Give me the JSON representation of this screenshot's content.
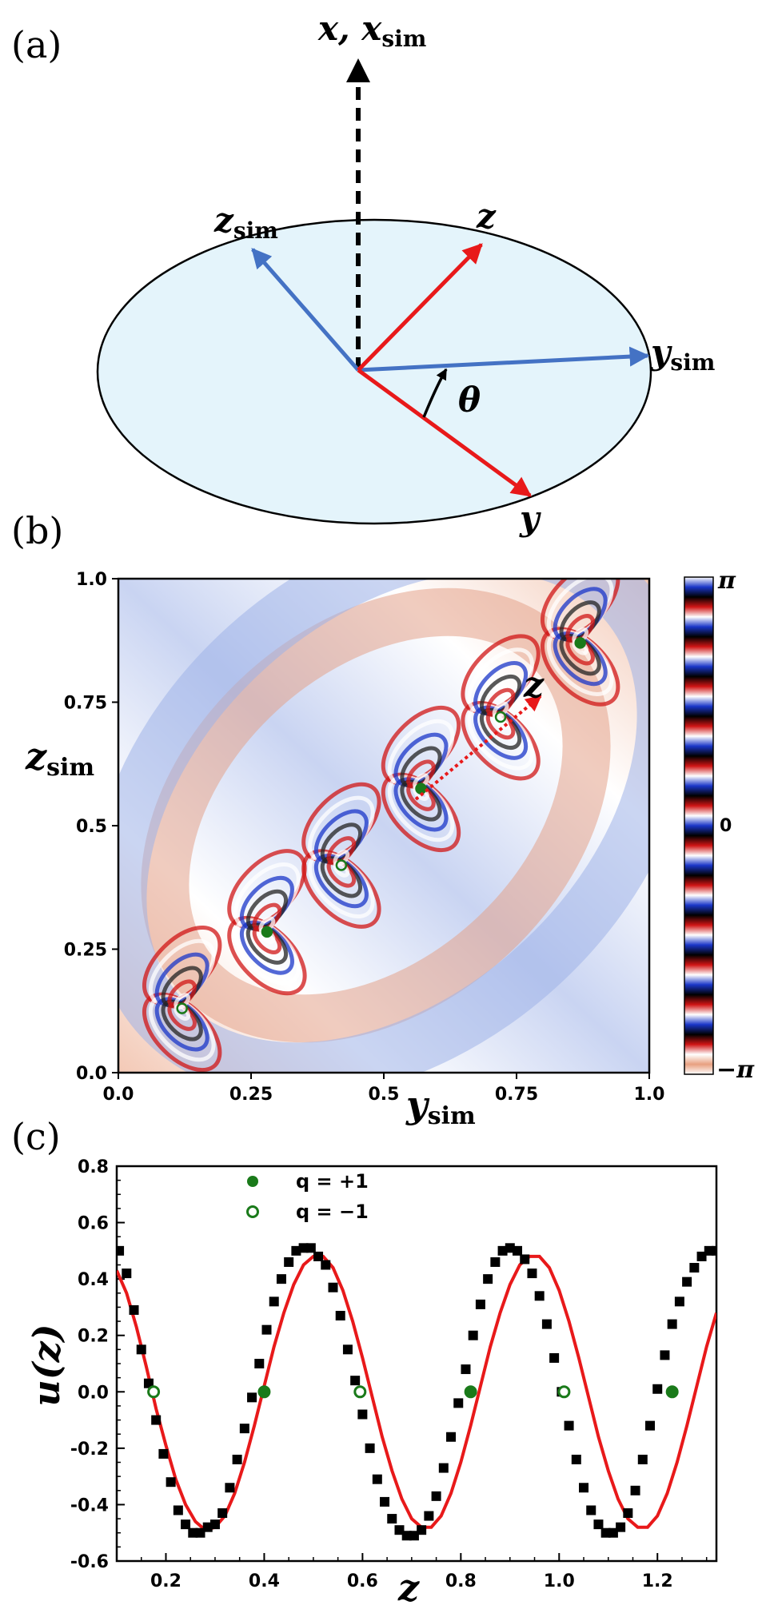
{
  "panel_a": {
    "label": "(a)",
    "axis_x": "x, x",
    "axis_x_sub": "sim",
    "axis_z": "z",
    "axis_zsim": "z",
    "axis_zsim_sub": "sim",
    "axis_ysim": "y",
    "axis_ysim_sub": "sim",
    "axis_y": "y",
    "angle": "θ",
    "colors": {
      "disk": "#e4f4fb",
      "sim_axes": "#4472c4",
      "lab_axes": "#e8191a",
      "dashed_axis": "#000000"
    }
  },
  "panel_b": {
    "label": "(b)",
    "xlabel": "y",
    "xlabel_sub": "sim",
    "ylabel": "z",
    "ylabel_sub": "sim",
    "z_arrow_label": "z",
    "x_ticks": [
      "0.0",
      "0.25",
      "0.5",
      "0.75",
      "1.0"
    ],
    "y_ticks": [
      "0.0",
      "0.25",
      "0.5",
      "0.75",
      "1.0"
    ],
    "colorbar_ticks": [
      "π",
      "0",
      "−π"
    ],
    "colors": {
      "positive": "#b40426",
      "negative": "#3b4cc0",
      "vortex": "#1a7a1a",
      "arrow": "#e8191a"
    }
  },
  "chart_data": {
    "type": "scatter",
    "title": "",
    "xlabel": "z",
    "ylabel": "u(z)",
    "xlim": [
      0.1,
      1.32
    ],
    "ylim": [
      -0.6,
      0.8
    ],
    "x_ticks": [
      "0.2",
      "0.4",
      "0.6",
      "0.8",
      "1.0",
      "1.2"
    ],
    "y_ticks": [
      "0.8",
      "0.6",
      "0.4",
      "0.2",
      "0.0",
      "-0.2",
      "-0.4",
      "-0.6"
    ],
    "legend_position": "top-left",
    "series": [
      {
        "name": "q = +1",
        "marker": "filled-circle",
        "color": "#1a7a1a",
        "x": [
          0.4,
          0.82,
          1.23
        ],
        "y": [
          0.0,
          0.0,
          0.0
        ]
      },
      {
        "name": "q = −1",
        "marker": "open-circle",
        "color": "#1a7a1a",
        "x": [
          0.175,
          0.595,
          1.01
        ],
        "y": [
          0.0,
          0.0,
          0.0
        ]
      },
      {
        "marker": "square",
        "color": "#000000",
        "x": [
          0.105,
          0.12,
          0.135,
          0.15,
          0.165,
          0.18,
          0.195,
          0.21,
          0.225,
          0.24,
          0.255,
          0.27,
          0.285,
          0.3,
          0.315,
          0.33,
          0.345,
          0.36,
          0.375,
          0.39,
          0.405,
          0.42,
          0.435,
          0.45,
          0.465,
          0.48,
          0.495,
          0.51,
          0.525,
          0.54,
          0.555,
          0.57,
          0.585,
          0.6,
          0.615,
          0.63,
          0.645,
          0.66,
          0.675,
          0.69,
          0.705,
          0.72,
          0.735,
          0.75,
          0.765,
          0.78,
          0.795,
          0.81,
          0.825,
          0.84,
          0.855,
          0.87,
          0.885,
          0.9,
          0.915,
          0.93,
          0.945,
          0.96,
          0.975,
          0.99,
          1.005,
          1.02,
          1.035,
          1.05,
          1.065,
          1.08,
          1.095,
          1.11,
          1.125,
          1.14,
          1.155,
          1.17,
          1.185,
          1.2,
          1.215,
          1.23,
          1.245,
          1.26,
          1.275,
          1.29,
          1.305,
          1.32
        ],
        "y": [
          0.5,
          0.42,
          0.29,
          0.15,
          0.03,
          -0.1,
          -0.22,
          -0.32,
          -0.42,
          -0.47,
          -0.5,
          -0.5,
          -0.48,
          -0.47,
          -0.43,
          -0.34,
          -0.24,
          -0.13,
          -0.02,
          0.1,
          0.22,
          0.32,
          0.4,
          0.46,
          0.5,
          0.51,
          0.51,
          0.48,
          0.45,
          0.37,
          0.27,
          0.15,
          0.04,
          -0.08,
          -0.2,
          -0.31,
          -0.39,
          -0.45,
          -0.49,
          -0.51,
          -0.51,
          -0.49,
          -0.44,
          -0.37,
          -0.27,
          -0.16,
          -0.04,
          0.08,
          0.2,
          0.31,
          0.4,
          0.46,
          0.5,
          0.51,
          0.5,
          0.47,
          0.42,
          0.34,
          0.24,
          0.12,
          0.0,
          -0.12,
          -0.24,
          -0.34,
          -0.42,
          -0.47,
          -0.5,
          -0.5,
          -0.48,
          -0.43,
          -0.35,
          -0.24,
          -0.12,
          0.01,
          0.13,
          0.24,
          0.32,
          0.39,
          0.44,
          0.48,
          0.5,
          0.5
        ]
      },
      {
        "marker": "line",
        "color": "#e8191a",
        "x": [
          0.1,
          0.12,
          0.14,
          0.16,
          0.18,
          0.2,
          0.22,
          0.24,
          0.26,
          0.28,
          0.3,
          0.32,
          0.34,
          0.36,
          0.38,
          0.4,
          0.42,
          0.44,
          0.46,
          0.48,
          0.5,
          0.52,
          0.54,
          0.56,
          0.58,
          0.6,
          0.62,
          0.64,
          0.66,
          0.68,
          0.7,
          0.72,
          0.74,
          0.76,
          0.78,
          0.8,
          0.82,
          0.84,
          0.86,
          0.88,
          0.9,
          0.92,
          0.94,
          0.96,
          0.98,
          1.0,
          1.02,
          1.04,
          1.06,
          1.08,
          1.1,
          1.12,
          1.14,
          1.16,
          1.18,
          1.2,
          1.22,
          1.24,
          1.26,
          1.28,
          1.3,
          1.32
        ],
        "y": [
          0.43,
          0.35,
          0.23,
          0.09,
          -0.06,
          -0.19,
          -0.31,
          -0.4,
          -0.46,
          -0.49,
          -0.48,
          -0.44,
          -0.36,
          -0.25,
          -0.12,
          0.02,
          0.16,
          0.28,
          0.38,
          0.45,
          0.48,
          0.48,
          0.44,
          0.36,
          0.25,
          0.12,
          -0.02,
          -0.16,
          -0.28,
          -0.38,
          -0.45,
          -0.48,
          -0.48,
          -0.44,
          -0.36,
          -0.25,
          -0.12,
          0.02,
          0.16,
          0.28,
          0.38,
          0.45,
          0.48,
          0.48,
          0.44,
          0.36,
          0.25,
          0.12,
          -0.02,
          -0.16,
          -0.28,
          -0.38,
          -0.45,
          -0.48,
          -0.48,
          -0.44,
          -0.36,
          -0.25,
          -0.12,
          0.02,
          0.16,
          0.28
        ]
      }
    ]
  }
}
